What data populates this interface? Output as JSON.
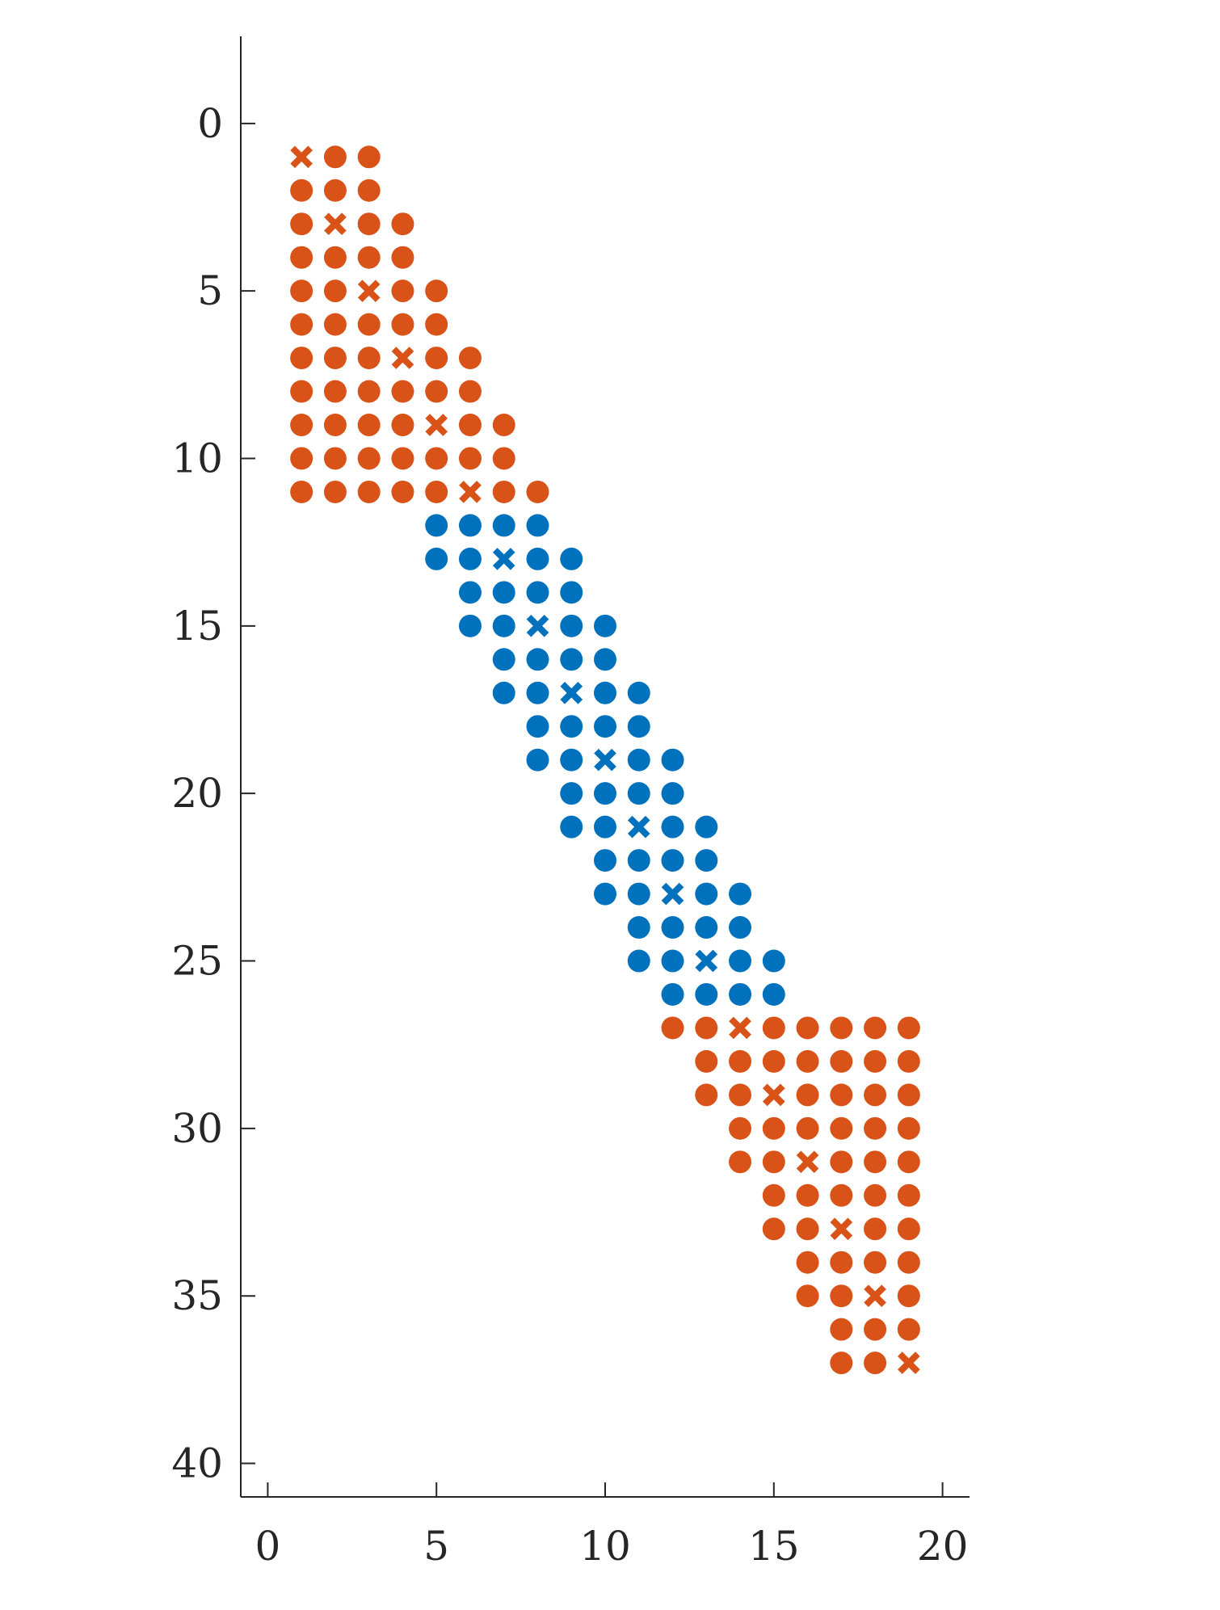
{
  "chart_data": {
    "type": "scatter",
    "title": "",
    "xlabel": "",
    "ylabel": "",
    "xlim": [
      -0.8,
      20.8
    ],
    "ylim": [
      41,
      -2.6
    ],
    "y_reversed": true,
    "grid": false,
    "legend": "none",
    "xticks": [
      0,
      5,
      10,
      15,
      20
    ],
    "yticks": [
      0,
      5,
      10,
      15,
      20,
      25,
      30,
      35,
      40
    ],
    "xtick_labels": [
      "0",
      "5",
      "10",
      "15",
      "20"
    ],
    "ytick_labels": [
      "0",
      "5",
      "10",
      "15",
      "20",
      "25",
      "30",
      "35",
      "40"
    ],
    "colors": {
      "orange": "#d95319",
      "blue": "#0072bd",
      "axis": "#262626"
    },
    "series": [
      {
        "color": "orange",
        "marker": "circle",
        "points": [
          [
            2,
            1
          ],
          [
            3,
            1
          ],
          [
            1,
            2
          ],
          [
            2,
            2
          ],
          [
            3,
            2
          ],
          [
            1,
            3
          ],
          [
            3,
            3
          ],
          [
            4,
            3
          ],
          [
            1,
            4
          ],
          [
            2,
            4
          ],
          [
            3,
            4
          ],
          [
            4,
            4
          ],
          [
            1,
            5
          ],
          [
            2,
            5
          ],
          [
            4,
            5
          ],
          [
            5,
            5
          ],
          [
            1,
            6
          ],
          [
            2,
            6
          ],
          [
            3,
            6
          ],
          [
            4,
            6
          ],
          [
            5,
            6
          ],
          [
            1,
            7
          ],
          [
            2,
            7
          ],
          [
            3,
            7
          ],
          [
            5,
            7
          ],
          [
            6,
            7
          ],
          [
            1,
            8
          ],
          [
            2,
            8
          ],
          [
            3,
            8
          ],
          [
            4,
            8
          ],
          [
            5,
            8
          ],
          [
            6,
            8
          ],
          [
            1,
            9
          ],
          [
            2,
            9
          ],
          [
            3,
            9
          ],
          [
            4,
            9
          ],
          [
            6,
            9
          ],
          [
            7,
            9
          ],
          [
            1,
            10
          ],
          [
            2,
            10
          ],
          [
            3,
            10
          ],
          [
            4,
            10
          ],
          [
            5,
            10
          ],
          [
            6,
            10
          ],
          [
            7,
            10
          ],
          [
            1,
            11
          ],
          [
            2,
            11
          ],
          [
            3,
            11
          ],
          [
            4,
            11
          ],
          [
            5,
            11
          ],
          [
            7,
            11
          ],
          [
            8,
            11
          ],
          [
            12,
            27
          ],
          [
            13,
            27
          ],
          [
            15,
            27
          ],
          [
            16,
            27
          ],
          [
            17,
            27
          ],
          [
            18,
            27
          ],
          [
            19,
            27
          ],
          [
            13,
            28
          ],
          [
            14,
            28
          ],
          [
            15,
            28
          ],
          [
            16,
            28
          ],
          [
            17,
            28
          ],
          [
            18,
            28
          ],
          [
            19,
            28
          ],
          [
            13,
            29
          ],
          [
            14,
            29
          ],
          [
            16,
            29
          ],
          [
            17,
            29
          ],
          [
            18,
            29
          ],
          [
            19,
            29
          ],
          [
            14,
            30
          ],
          [
            15,
            30
          ],
          [
            16,
            30
          ],
          [
            17,
            30
          ],
          [
            18,
            30
          ],
          [
            19,
            30
          ],
          [
            14,
            31
          ],
          [
            15,
            31
          ],
          [
            17,
            31
          ],
          [
            18,
            31
          ],
          [
            19,
            31
          ],
          [
            15,
            32
          ],
          [
            16,
            32
          ],
          [
            17,
            32
          ],
          [
            18,
            32
          ],
          [
            19,
            32
          ],
          [
            15,
            33
          ],
          [
            16,
            33
          ],
          [
            18,
            33
          ],
          [
            19,
            33
          ],
          [
            16,
            34
          ],
          [
            17,
            34
          ],
          [
            18,
            34
          ],
          [
            19,
            34
          ],
          [
            16,
            35
          ],
          [
            17,
            35
          ],
          [
            19,
            35
          ],
          [
            17,
            36
          ],
          [
            18,
            36
          ],
          [
            19,
            36
          ],
          [
            17,
            37
          ],
          [
            18,
            37
          ]
        ]
      },
      {
        "color": "orange",
        "marker": "x",
        "points": [
          [
            1,
            1
          ],
          [
            2,
            3
          ],
          [
            3,
            5
          ],
          [
            4,
            7
          ],
          [
            5,
            9
          ],
          [
            6,
            11
          ],
          [
            14,
            27
          ],
          [
            15,
            29
          ],
          [
            16,
            31
          ],
          [
            17,
            33
          ],
          [
            18,
            35
          ],
          [
            19,
            37
          ]
        ]
      },
      {
        "color": "blue",
        "marker": "circle",
        "points": [
          [
            5,
            12
          ],
          [
            6,
            12
          ],
          [
            7,
            12
          ],
          [
            8,
            12
          ],
          [
            5,
            13
          ],
          [
            6,
            13
          ],
          [
            8,
            13
          ],
          [
            9,
            13
          ],
          [
            6,
            14
          ],
          [
            7,
            14
          ],
          [
            8,
            14
          ],
          [
            9,
            14
          ],
          [
            6,
            15
          ],
          [
            7,
            15
          ],
          [
            9,
            15
          ],
          [
            10,
            15
          ],
          [
            7,
            16
          ],
          [
            8,
            16
          ],
          [
            9,
            16
          ],
          [
            10,
            16
          ],
          [
            7,
            17
          ],
          [
            8,
            17
          ],
          [
            10,
            17
          ],
          [
            11,
            17
          ],
          [
            8,
            18
          ],
          [
            9,
            18
          ],
          [
            10,
            18
          ],
          [
            11,
            18
          ],
          [
            8,
            19
          ],
          [
            9,
            19
          ],
          [
            11,
            19
          ],
          [
            12,
            19
          ],
          [
            9,
            20
          ],
          [
            10,
            20
          ],
          [
            11,
            20
          ],
          [
            12,
            20
          ],
          [
            9,
            21
          ],
          [
            10,
            21
          ],
          [
            12,
            21
          ],
          [
            13,
            21
          ],
          [
            10,
            22
          ],
          [
            11,
            22
          ],
          [
            12,
            22
          ],
          [
            13,
            22
          ],
          [
            10,
            23
          ],
          [
            11,
            23
          ],
          [
            13,
            23
          ],
          [
            14,
            23
          ],
          [
            11,
            24
          ],
          [
            12,
            24
          ],
          [
            13,
            24
          ],
          [
            14,
            24
          ],
          [
            11,
            25
          ],
          [
            12,
            25
          ],
          [
            14,
            25
          ],
          [
            15,
            25
          ],
          [
            12,
            26
          ],
          [
            13,
            26
          ],
          [
            14,
            26
          ],
          [
            15,
            26
          ]
        ]
      },
      {
        "color": "blue",
        "marker": "x",
        "points": [
          [
            7,
            13
          ],
          [
            8,
            15
          ],
          [
            9,
            17
          ],
          [
            10,
            19
          ],
          [
            11,
            21
          ],
          [
            12,
            23
          ],
          [
            13,
            25
          ]
        ]
      }
    ]
  }
}
